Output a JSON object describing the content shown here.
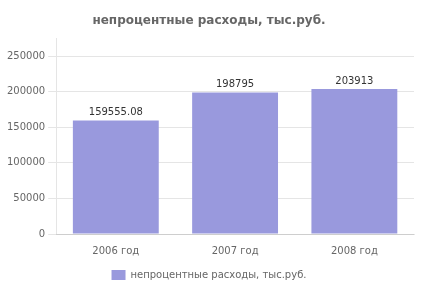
{
  "chart_data": {
    "type": "bar",
    "title": "непроцентные расходы, тыс.руб.",
    "categories": [
      "2006 год",
      "2007 год",
      "2008 год"
    ],
    "series": [
      {
        "name": "непроцентные расходы, тыс.руб.",
        "color": "#9999dd",
        "values": [
          159555.08,
          198795,
          203913
        ]
      }
    ],
    "ylim": [
      0,
      275000
    ],
    "yticks": [
      0,
      50000,
      100000,
      150000,
      200000,
      250000
    ],
    "grid": true,
    "legend": "bottom",
    "data_labels": true
  }
}
